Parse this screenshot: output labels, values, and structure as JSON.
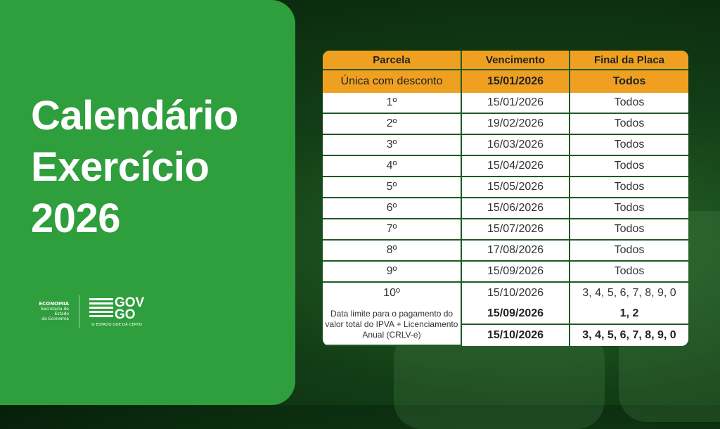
{
  "title_lines": [
    "Calendário",
    "Exercício",
    "2026"
  ],
  "logos": {
    "economia": "ECONOMIA",
    "economia_sub1": "Secretaria de Estado",
    "economia_sub2": "da Economia",
    "gov1": "GOV",
    "gov2": "GO",
    "gov_slogan": "O ESTADO QUE DÁ CERTO"
  },
  "table": {
    "headers": [
      "Parcela",
      "Vencimento",
      "Final da Placa"
    ],
    "highlight": [
      "Única com desconto",
      "15/01/2026",
      "Todos"
    ],
    "rows": [
      [
        "1º",
        "15/01/2026",
        "Todos"
      ],
      [
        "2º",
        "19/02/2026",
        "Todos"
      ],
      [
        "3º",
        "16/03/2026",
        "Todos"
      ],
      [
        "4º",
        "15/04/2026",
        "Todos"
      ],
      [
        "5º",
        "15/05/2026",
        "Todos"
      ],
      [
        "6º",
        "15/06/2026",
        "Todos"
      ],
      [
        "7º",
        "15/07/2026",
        "Todos"
      ],
      [
        "8º",
        "17/08/2026",
        "Todos"
      ],
      [
        "9º",
        "15/09/2026",
        "Todos"
      ],
      [
        "10º",
        "15/10/2026",
        "3, 4, 5, 6, 7, 8, 9, 0"
      ]
    ],
    "final_note": "Data limite para o pagamento do valor total do IPVA + Licenciamento Anual (CRLV-e)",
    "final_rows": [
      [
        "15/09/2026",
        "1, 2"
      ],
      [
        "15/10/2026",
        "3, 4, 5, 6, 7, 8, 9, 0"
      ]
    ]
  },
  "colors": {
    "green": "#2f9e3d",
    "orange": "#f0a020",
    "border": "#1f5a24"
  }
}
